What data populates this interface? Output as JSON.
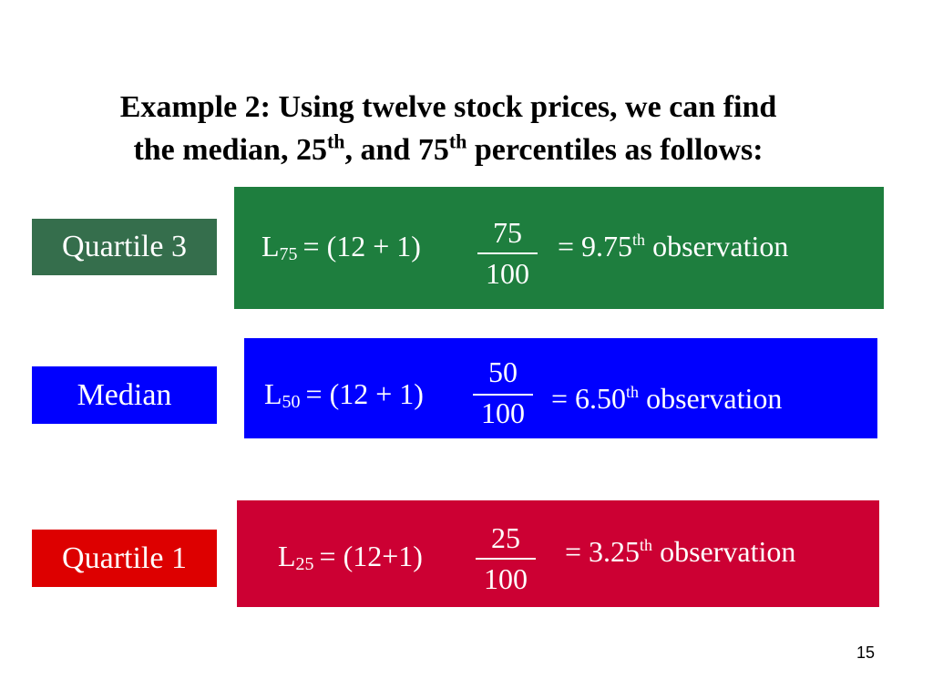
{
  "title": {
    "line1": "Example 2: Using twelve stock prices, we can find",
    "line2": [
      "the median, 25",
      "th",
      ", and 75",
      "th",
      " percentiles as follows:"
    ]
  },
  "rows": [
    {
      "label": "Quartile 3",
      "formula": {
        "symbol": "L",
        "subscript": "75",
        "expression": "= (12 + 1)",
        "numerator": "75",
        "denominator": "100",
        "result": "= 9.75",
        "superscript": "th",
        "unit": "observation"
      }
    },
    {
      "label": "Median",
      "formula": {
        "symbol": "L",
        "subscript": "50",
        "expression": "= (12 + 1)",
        "numerator": "50",
        "denominator": "100",
        "result": "= 6.50",
        "superscript": "th",
        "unit": "observation"
      }
    },
    {
      "label": "Quartile 1",
      "formula": {
        "symbol": "L",
        "subscript": "25",
        "expression": "= (12+1)",
        "numerator": "25",
        "denominator": "100",
        "result": "= 3.25",
        "superscript": "th",
        "unit": "observation"
      }
    }
  ],
  "page_number": "15"
}
